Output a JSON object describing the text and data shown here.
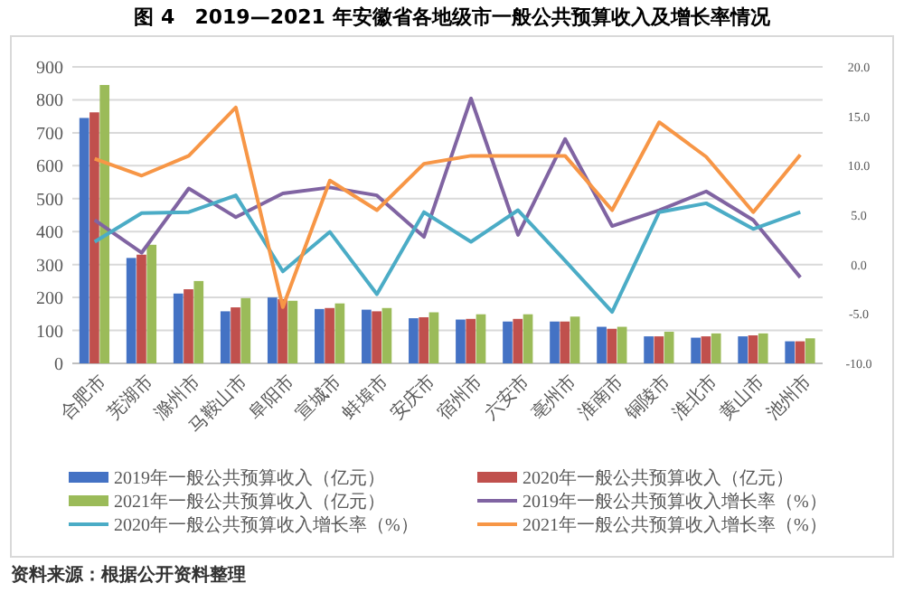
{
  "chart_data": {
    "type": "bar",
    "title": "图 4　2019—2021 年安徽省各地级市一般公共预算收入及增长率情况",
    "annotations": [
      "资料来源：根据公开资料整理"
    ],
    "categories": [
      "合肥市",
      "芜湖市",
      "滁州市",
      "马鞍山市",
      "阜阳市",
      "宣城市",
      "蚌埠市",
      "安庆市",
      "宿州市",
      "六安市",
      "亳州市",
      "淮南市",
      "铜陵市",
      "淮北市",
      "黄山市",
      "池州市"
    ],
    "series": [
      {
        "name": "2019年一般公共预算收入（亿元）",
        "color": "#4472c4",
        "values": [
          745,
          320,
          212,
          158,
          200,
          165,
          163,
          137,
          133,
          127,
          127,
          111,
          82,
          78,
          82,
          67
        ]
      },
      {
        "name": "2020年一般公共预算收入（亿元）",
        "color": "#c0504d",
        "values": [
          762,
          330,
          225,
          170,
          195,
          168,
          158,
          140,
          135,
          135,
          127,
          105,
          82,
          82,
          85,
          67
        ]
      },
      {
        "name": "2021年一般公共预算收入（亿元）",
        "color": "#9bbb59",
        "values": [
          845,
          360,
          250,
          198,
          190,
          182,
          168,
          155,
          149,
          149,
          142,
          111,
          96,
          91,
          91,
          76
        ]
      },
      {
        "name": "2019年一般公共预算收入增长率（%）",
        "type": "line",
        "axis": "y2",
        "color": "#8064a2",
        "values": [
          4.5,
          1.2,
          7.7,
          4.8,
          7.2,
          7.8,
          7.0,
          2.8,
          16.8,
          3.0,
          12.7,
          3.9,
          5.5,
          7.4,
          4.5,
          -1.3
        ]
      },
      {
        "name": "2020年一般公共预算收入增长率（%）",
        "type": "line",
        "axis": "y2",
        "color": "#4bacc6",
        "values": [
          2.3,
          5.2,
          5.3,
          7.0,
          -0.7,
          3.3,
          -3.0,
          5.3,
          2.3,
          5.5,
          0.4,
          -4.8,
          5.3,
          6.2,
          3.6,
          5.3
        ]
      },
      {
        "name": "2021年一般公共预算收入增长率（%）",
        "type": "line",
        "axis": "y2",
        "color": "#f79646",
        "values": [
          10.7,
          9.0,
          11.0,
          15.9,
          -4.3,
          8.5,
          5.5,
          10.2,
          11.0,
          11.0,
          11.0,
          5.5,
          14.4,
          10.9,
          5.3,
          11.1
        ]
      }
    ],
    "ylim": [
      0,
      900
    ],
    "yticks": [
      0,
      100,
      200,
      300,
      400,
      500,
      600,
      700,
      800,
      900
    ],
    "y2lim": [
      -10,
      20
    ],
    "y2ticks": [
      {
        "value": -10,
        "label": "-10.0"
      },
      {
        "value": -5,
        "label": "-5.0"
      },
      {
        "value": 0,
        "label": "0.0"
      },
      {
        "value": 5,
        "label": "5.0"
      },
      {
        "value": 10,
        "label": "10.0"
      },
      {
        "value": 15,
        "label": "15.0"
      },
      {
        "value": 20,
        "label": "20.0"
      }
    ],
    "grid": "y",
    "legend": "bottom",
    "marker": "none",
    "line_style": "solid"
  }
}
